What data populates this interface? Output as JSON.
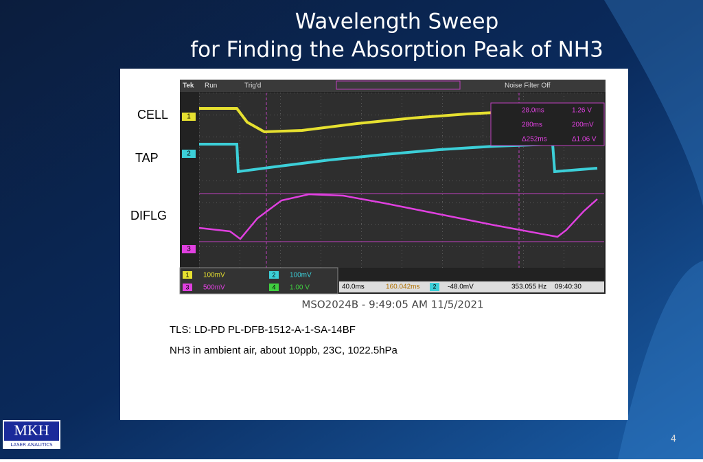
{
  "slide": {
    "title": [
      "Wavelength Sweep",
      "for Finding the Absorption Peak of  NH3"
    ],
    "trace_labels": [
      "CELL",
      "TAP",
      "DIFLG"
    ],
    "scope": {
      "header": [
        "Tek",
        "Run",
        "Trig'd",
        "Noise Filter Off"
      ],
      "channels": [
        "1",
        "2",
        "3",
        "4"
      ],
      "measurements": [
        "28.0ms",
        "1.26 V",
        "280ms",
        "200mV",
        "Δ252ms",
        "Δ1.06 V"
      ],
      "status": [
        "100mV",
        "500mV",
        "100mV",
        "1.00 V",
        "40.0ms",
        "160.042ms",
        "-48.0mV",
        "353.055 Hz",
        "09:40:30"
      ]
    },
    "caption": "MSO2024B - 9:49:05 AM   11/5/2021",
    "notes": [
      "TLS: LD-PD PL-DFB-1512-A-1-SA-14BF",
      "NH3 in ambient air, about 10ppb, 23C, 1022.5hPa"
    ],
    "logo": [
      "MKH",
      "LASER ANALITICS"
    ],
    "page_number": "4"
  }
}
